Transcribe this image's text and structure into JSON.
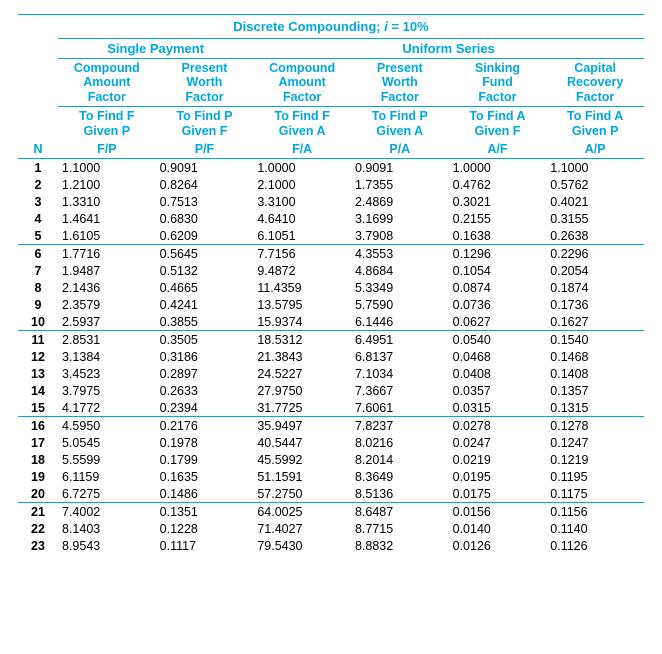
{
  "title_plain": "Discrete Compounding; ",
  "title_var": "i",
  "title_suffix": " = 10%",
  "group_single": "Single Payment",
  "group_uniform": "Uniform Series",
  "factors": {
    "c1": "Compound Amount Factor",
    "c2": "Present Worth Factor",
    "c3": "Compound Amount Factor",
    "c4": "Present Worth Factor",
    "c5": "Sinking Fund Factor",
    "c6": "Capital Recovery Factor"
  },
  "find": {
    "c1": "To Find F Given P F/P",
    "c2": "To Find P Given F P/F",
    "c3": "To Find F Given A F/A",
    "c4": "To Find P Given A P/A",
    "c5": "To Find A Given F A/F",
    "c6": "To Find A Given P A/P"
  },
  "n_label": "N",
  "colors": {
    "accent": "#00a8e0",
    "text": "#000000",
    "bg": "#ffffff"
  },
  "font_sizes": {
    "title": 13,
    "header": 12.5,
    "body": 12.5
  },
  "table": {
    "type": "table",
    "columns": [
      "N",
      "F/P",
      "P/F",
      "F/A",
      "P/A",
      "A/F",
      "A/P"
    ],
    "block_breaks_after": [
      5,
      10,
      15,
      20
    ],
    "column_decimals": [
      0,
      4,
      4,
      4,
      4,
      4,
      4
    ],
    "rows": [
      [
        1,
        "1.1000",
        "0.9091",
        "1.0000",
        "0.9091",
        "1.0000",
        "1.1000"
      ],
      [
        2,
        "1.2100",
        "0.8264",
        "2.1000",
        "1.7355",
        "0.4762",
        "0.5762"
      ],
      [
        3,
        "1.3310",
        "0.7513",
        "3.3100",
        "2.4869",
        "0.3021",
        "0.4021"
      ],
      [
        4,
        "1.4641",
        "0.6830",
        "4.6410",
        "3.1699",
        "0.2155",
        "0.3155"
      ],
      [
        5,
        "1.6105",
        "0.6209",
        "6.1051",
        "3.7908",
        "0.1638",
        "0.2638"
      ],
      [
        6,
        "1.7716",
        "0.5645",
        "7.7156",
        "4.3553",
        "0.1296",
        "0.2296"
      ],
      [
        7,
        "1.9487",
        "0.5132",
        "9.4872",
        "4.8684",
        "0.1054",
        "0.2054"
      ],
      [
        8,
        "2.1436",
        "0.4665",
        "11.4359",
        "5.3349",
        "0.0874",
        "0.1874"
      ],
      [
        9,
        "2.3579",
        "0.4241",
        "13.5795",
        "5.7590",
        "0.0736",
        "0.1736"
      ],
      [
        10,
        "2.5937",
        "0.3855",
        "15.9374",
        "6.1446",
        "0.0627",
        "0.1627"
      ],
      [
        11,
        "2.8531",
        "0.3505",
        "18.5312",
        "6.4951",
        "0.0540",
        "0.1540"
      ],
      [
        12,
        "3.1384",
        "0.3186",
        "21.3843",
        "6.8137",
        "0.0468",
        "0.1468"
      ],
      [
        13,
        "3.4523",
        "0.2897",
        "24.5227",
        "7.1034",
        "0.0408",
        "0.1408"
      ],
      [
        14,
        "3.7975",
        "0.2633",
        "27.9750",
        "7.3667",
        "0.0357",
        "0.1357"
      ],
      [
        15,
        "4.1772",
        "0.2394",
        "31.7725",
        "7.6061",
        "0.0315",
        "0.1315"
      ],
      [
        16,
        "4.5950",
        "0.2176",
        "35.9497",
        "7.8237",
        "0.0278",
        "0.1278"
      ],
      [
        17,
        "5.0545",
        "0.1978",
        "40.5447",
        "8.0216",
        "0.0247",
        "0.1247"
      ],
      [
        18,
        "5.5599",
        "0.1799",
        "45.5992",
        "8.2014",
        "0.0219",
        "0.1219"
      ],
      [
        19,
        "6.1159",
        "0.1635",
        "51.1591",
        "8.3649",
        "0.0195",
        "0.1195"
      ],
      [
        20,
        "6.7275",
        "0.1486",
        "57.2750",
        "8.5136",
        "0.0175",
        "0.1175"
      ],
      [
        21,
        "7.4002",
        "0.1351",
        "64.0025",
        "8.6487",
        "0.0156",
        "0.1156"
      ],
      [
        22,
        "8.1403",
        "0.1228",
        "71.4027",
        "8.7715",
        "0.0140",
        "0.1140"
      ],
      [
        23,
        "8.9543",
        "0.1117",
        "79.5430",
        "8.8832",
        "0.0126",
        "0.1126"
      ]
    ]
  }
}
